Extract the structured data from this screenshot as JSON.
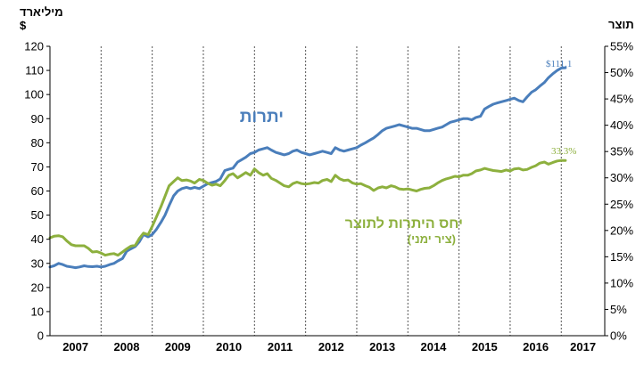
{
  "chart_data": {
    "type": "line",
    "left_axis": {
      "title_line1": "מיליארד",
      "title_line2": "$",
      "min": 0,
      "max": 120,
      "step": 10,
      "ticks": [
        "0",
        "10",
        "20",
        "30",
        "40",
        "50",
        "60",
        "70",
        "80",
        "90",
        "100",
        "110",
        "120"
      ]
    },
    "right_axis": {
      "title": "תוצר",
      "min": 0,
      "max": 55,
      "step": 5,
      "ticks": [
        "0%",
        "5%",
        "10%",
        "15%",
        "20%",
        "25%",
        "30%",
        "35%",
        "40%",
        "45%",
        "50%",
        "55%"
      ]
    },
    "years": [
      "2007",
      "2008",
      "2009",
      "2010",
      "2011",
      "2012",
      "2013",
      "2014",
      "2015",
      "2016",
      "2017"
    ],
    "x_start": 2007.0,
    "x_end": 2017.85,
    "colors": {
      "reserves": "#4a7ebb",
      "ratio": "#8db03e"
    },
    "series": [
      {
        "key": "reserves",
        "name": "יתרות",
        "axis": "left",
        "end_label": "$111.1",
        "points": [
          [
            2007.0,
            28.5
          ],
          [
            2007.08,
            29
          ],
          [
            2007.17,
            30
          ],
          [
            2007.25,
            29.5
          ],
          [
            2007.33,
            28.8
          ],
          [
            2007.42,
            28.5
          ],
          [
            2007.5,
            28.2
          ],
          [
            2007.58,
            28.5
          ],
          [
            2007.67,
            29
          ],
          [
            2007.75,
            28.7
          ],
          [
            2007.83,
            28.6
          ],
          [
            2007.92,
            28.8
          ],
          [
            2008.0,
            28.5
          ],
          [
            2008.08,
            28.8
          ],
          [
            2008.17,
            29.5
          ],
          [
            2008.25,
            30
          ],
          [
            2008.33,
            31
          ],
          [
            2008.42,
            32
          ],
          [
            2008.5,
            35
          ],
          [
            2008.58,
            36
          ],
          [
            2008.67,
            37
          ],
          [
            2008.75,
            39
          ],
          [
            2008.83,
            42
          ],
          [
            2008.92,
            41
          ],
          [
            2009.0,
            42
          ],
          [
            2009.08,
            44
          ],
          [
            2009.17,
            47
          ],
          [
            2009.25,
            50
          ],
          [
            2009.33,
            54
          ],
          [
            2009.42,
            58
          ],
          [
            2009.5,
            60
          ],
          [
            2009.58,
            61
          ],
          [
            2009.67,
            61.5
          ],
          [
            2009.75,
            61
          ],
          [
            2009.83,
            61.5
          ],
          [
            2009.92,
            61
          ],
          [
            2010.0,
            62
          ],
          [
            2010.08,
            63
          ],
          [
            2010.17,
            63.5
          ],
          [
            2010.25,
            64
          ],
          [
            2010.33,
            65
          ],
          [
            2010.42,
            68.5
          ],
          [
            2010.5,
            69
          ],
          [
            2010.58,
            69.5
          ],
          [
            2010.67,
            72
          ],
          [
            2010.75,
            73
          ],
          [
            2010.83,
            74
          ],
          [
            2010.92,
            75.5
          ],
          [
            2011.0,
            76
          ],
          [
            2011.08,
            77
          ],
          [
            2011.17,
            77.5
          ],
          [
            2011.25,
            78
          ],
          [
            2011.33,
            77
          ],
          [
            2011.42,
            76
          ],
          [
            2011.5,
            75.5
          ],
          [
            2011.58,
            75
          ],
          [
            2011.67,
            75.5
          ],
          [
            2011.75,
            76.5
          ],
          [
            2011.83,
            77
          ],
          [
            2011.92,
            76
          ],
          [
            2012.0,
            75.5
          ],
          [
            2012.08,
            75
          ],
          [
            2012.17,
            75.5
          ],
          [
            2012.25,
            76
          ],
          [
            2012.33,
            76.5
          ],
          [
            2012.42,
            76
          ],
          [
            2012.5,
            75.5
          ],
          [
            2012.58,
            78
          ],
          [
            2012.67,
            77
          ],
          [
            2012.75,
            76.5
          ],
          [
            2012.83,
            77
          ],
          [
            2012.92,
            77.5
          ],
          [
            2013.0,
            78
          ],
          [
            2013.08,
            79
          ],
          [
            2013.17,
            80
          ],
          [
            2013.25,
            81
          ],
          [
            2013.33,
            82
          ],
          [
            2013.42,
            83.5
          ],
          [
            2013.5,
            85
          ],
          [
            2013.58,
            86
          ],
          [
            2013.67,
            86.5
          ],
          [
            2013.75,
            87
          ],
          [
            2013.83,
            87.5
          ],
          [
            2013.92,
            87
          ],
          [
            2014.0,
            86.5
          ],
          [
            2014.08,
            86
          ],
          [
            2014.17,
            86
          ],
          [
            2014.25,
            85.5
          ],
          [
            2014.33,
            85
          ],
          [
            2014.42,
            85
          ],
          [
            2014.5,
            85.5
          ],
          [
            2014.58,
            86
          ],
          [
            2014.67,
            86.5
          ],
          [
            2014.75,
            87.5
          ],
          [
            2014.83,
            88.5
          ],
          [
            2014.92,
            89
          ],
          [
            2015.0,
            89.5
          ],
          [
            2015.08,
            90
          ],
          [
            2015.17,
            90
          ],
          [
            2015.25,
            89.5
          ],
          [
            2015.33,
            90.5
          ],
          [
            2015.42,
            91
          ],
          [
            2015.5,
            94
          ],
          [
            2015.58,
            95
          ],
          [
            2015.67,
            96
          ],
          [
            2015.75,
            96.5
          ],
          [
            2015.83,
            97
          ],
          [
            2015.92,
            97.5
          ],
          [
            2016.0,
            98
          ],
          [
            2016.08,
            98.5
          ],
          [
            2016.17,
            97.5
          ],
          [
            2016.25,
            97
          ],
          [
            2016.33,
            99
          ],
          [
            2016.42,
            101
          ],
          [
            2016.5,
            102
          ],
          [
            2016.58,
            103.5
          ],
          [
            2016.67,
            105
          ],
          [
            2016.75,
            107
          ],
          [
            2016.83,
            108.5
          ],
          [
            2016.92,
            110
          ],
          [
            2017.0,
            111
          ],
          [
            2017.08,
            111.1
          ]
        ]
      },
      {
        "key": "ratio",
        "name": "יחס היתרות לתוצר",
        "subname": "(ציר ימני)",
        "axis": "right",
        "end_label": "33.3%",
        "points": [
          [
            2007.0,
            18.6
          ],
          [
            2007.08,
            18.9
          ],
          [
            2007.17,
            19
          ],
          [
            2007.25,
            18.8
          ],
          [
            2007.33,
            18
          ],
          [
            2007.42,
            17.3
          ],
          [
            2007.5,
            17.1
          ],
          [
            2007.58,
            17.1
          ],
          [
            2007.67,
            17.1
          ],
          [
            2007.75,
            16.6
          ],
          [
            2007.83,
            15.9
          ],
          [
            2007.92,
            16
          ],
          [
            2008.0,
            15.7
          ],
          [
            2008.08,
            15.3
          ],
          [
            2008.17,
            15.5
          ],
          [
            2008.25,
            15.6
          ],
          [
            2008.33,
            15.3
          ],
          [
            2008.42,
            15.9
          ],
          [
            2008.5,
            16.5
          ],
          [
            2008.58,
            17
          ],
          [
            2008.67,
            17.2
          ],
          [
            2008.75,
            18.5
          ],
          [
            2008.83,
            19.5
          ],
          [
            2008.92,
            19.2
          ],
          [
            2009.0,
            20.8
          ],
          [
            2009.08,
            22.5
          ],
          [
            2009.17,
            24.5
          ],
          [
            2009.25,
            26.5
          ],
          [
            2009.33,
            28.5
          ],
          [
            2009.42,
            29.3
          ],
          [
            2009.5,
            30
          ],
          [
            2009.58,
            29.5
          ],
          [
            2009.67,
            29.6
          ],
          [
            2009.75,
            29.4
          ],
          [
            2009.83,
            29
          ],
          [
            2009.92,
            29.7
          ],
          [
            2010.0,
            29.5
          ],
          [
            2010.08,
            29
          ],
          [
            2010.17,
            28.6
          ],
          [
            2010.25,
            28.8
          ],
          [
            2010.33,
            28.5
          ],
          [
            2010.42,
            29.5
          ],
          [
            2010.5,
            30.5
          ],
          [
            2010.58,
            30.8
          ],
          [
            2010.67,
            30
          ],
          [
            2010.75,
            30.5
          ],
          [
            2010.83,
            31
          ],
          [
            2010.92,
            30.5
          ],
          [
            2011.0,
            31.7
          ],
          [
            2011.08,
            31
          ],
          [
            2011.17,
            30.5
          ],
          [
            2011.25,
            30.8
          ],
          [
            2011.33,
            29.9
          ],
          [
            2011.42,
            29.5
          ],
          [
            2011.5,
            29
          ],
          [
            2011.58,
            28.5
          ],
          [
            2011.67,
            28.3
          ],
          [
            2011.75,
            28.9
          ],
          [
            2011.83,
            29.2
          ],
          [
            2011.92,
            28.9
          ],
          [
            2012.0,
            28.8
          ],
          [
            2012.08,
            28.9
          ],
          [
            2012.17,
            29.1
          ],
          [
            2012.25,
            29
          ],
          [
            2012.33,
            29.5
          ],
          [
            2012.42,
            29.7
          ],
          [
            2012.5,
            29.3
          ],
          [
            2012.58,
            30.5
          ],
          [
            2012.67,
            29.8
          ],
          [
            2012.75,
            29.5
          ],
          [
            2012.83,
            29.6
          ],
          [
            2012.92,
            29
          ],
          [
            2013.0,
            28.8
          ],
          [
            2013.08,
            28.9
          ],
          [
            2013.17,
            28.5
          ],
          [
            2013.25,
            28.2
          ],
          [
            2013.33,
            27.6
          ],
          [
            2013.42,
            28.1
          ],
          [
            2013.5,
            28.3
          ],
          [
            2013.58,
            28.1
          ],
          [
            2013.67,
            28.5
          ],
          [
            2013.75,
            28.3
          ],
          [
            2013.83,
            27.9
          ],
          [
            2013.92,
            27.8
          ],
          [
            2014.0,
            27.9
          ],
          [
            2014.08,
            27.7
          ],
          [
            2014.17,
            27.5
          ],
          [
            2014.25,
            27.8
          ],
          [
            2014.33,
            28
          ],
          [
            2014.42,
            28.1
          ],
          [
            2014.5,
            28.5
          ],
          [
            2014.58,
            29
          ],
          [
            2014.67,
            29.5
          ],
          [
            2014.75,
            29.8
          ],
          [
            2014.83,
            30
          ],
          [
            2014.92,
            30.3
          ],
          [
            2015.0,
            30.2
          ],
          [
            2015.08,
            30.5
          ],
          [
            2015.17,
            30.5
          ],
          [
            2015.25,
            30.8
          ],
          [
            2015.33,
            31.3
          ],
          [
            2015.42,
            31.5
          ],
          [
            2015.5,
            31.8
          ],
          [
            2015.58,
            31.6
          ],
          [
            2015.67,
            31.4
          ],
          [
            2015.75,
            31.3
          ],
          [
            2015.83,
            31.2
          ],
          [
            2015.92,
            31.5
          ],
          [
            2016.0,
            31.3
          ],
          [
            2016.08,
            31.7
          ],
          [
            2016.17,
            31.8
          ],
          [
            2016.25,
            31.5
          ],
          [
            2016.33,
            31.6
          ],
          [
            2016.42,
            32
          ],
          [
            2016.5,
            32.3
          ],
          [
            2016.58,
            32.8
          ],
          [
            2016.67,
            33
          ],
          [
            2016.75,
            32.6
          ],
          [
            2016.83,
            32.9
          ],
          [
            2016.92,
            33.2
          ],
          [
            2017.0,
            33.3
          ],
          [
            2017.08,
            33.3
          ]
        ]
      }
    ]
  }
}
